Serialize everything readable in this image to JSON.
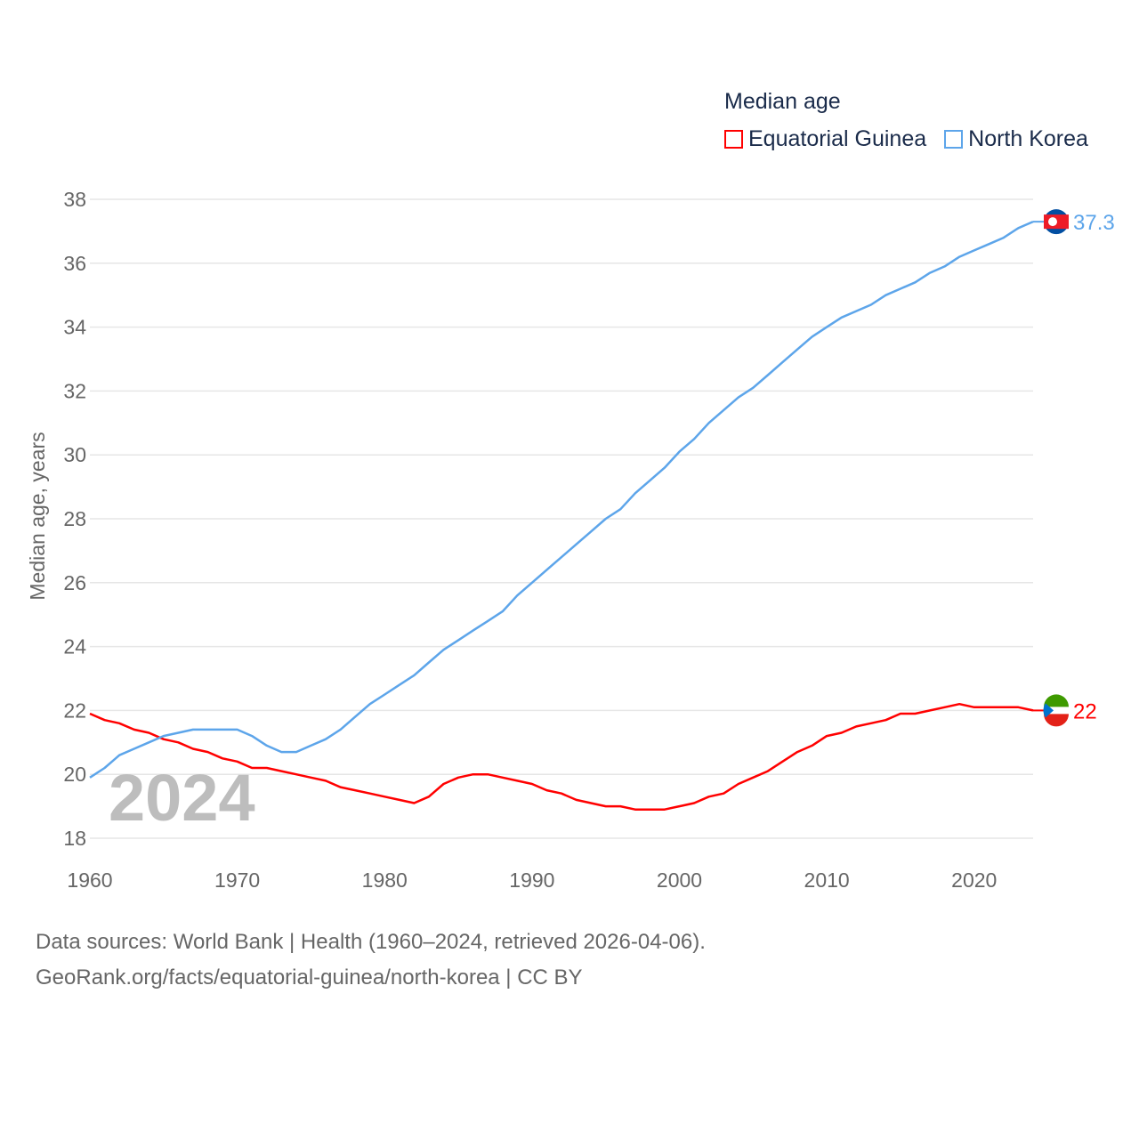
{
  "chart_data": {
    "type": "line",
    "title": "Median age",
    "ylabel": "Median age, years",
    "xlabel": "",
    "xlim": [
      1960,
      2024
    ],
    "ylim": [
      18,
      38
    ],
    "yticks": [
      18,
      20,
      22,
      24,
      26,
      28,
      30,
      32,
      34,
      36,
      38
    ],
    "xticks": [
      1960,
      1970,
      1980,
      1990,
      2000,
      2010,
      2020
    ],
    "grid": true,
    "legend_position": "top-right",
    "year_watermark": "2024",
    "x": [
      1960,
      1961,
      1962,
      1963,
      1964,
      1965,
      1966,
      1967,
      1968,
      1969,
      1970,
      1971,
      1972,
      1973,
      1974,
      1975,
      1976,
      1977,
      1978,
      1979,
      1980,
      1981,
      1982,
      1983,
      1984,
      1985,
      1986,
      1987,
      1988,
      1989,
      1990,
      1991,
      1992,
      1993,
      1994,
      1995,
      1996,
      1997,
      1998,
      1999,
      2000,
      2001,
      2002,
      2003,
      2004,
      2005,
      2006,
      2007,
      2008,
      2009,
      2010,
      2011,
      2012,
      2013,
      2014,
      2015,
      2016,
      2017,
      2018,
      2019,
      2020,
      2021,
      2022,
      2023,
      2024
    ],
    "series": [
      {
        "name": "Equatorial Guinea",
        "color": "#ff0000",
        "end_label": "22",
        "values": [
          21.9,
          21.7,
          21.6,
          21.4,
          21.3,
          21.1,
          21.0,
          20.8,
          20.7,
          20.5,
          20.4,
          20.2,
          20.2,
          20.1,
          20.0,
          19.9,
          19.8,
          19.6,
          19.5,
          19.4,
          19.3,
          19.2,
          19.1,
          19.3,
          19.7,
          19.9,
          20.0,
          20.0,
          19.9,
          19.8,
          19.7,
          19.5,
          19.4,
          19.2,
          19.1,
          19.0,
          19.0,
          18.9,
          18.9,
          18.9,
          19.0,
          19.1,
          19.3,
          19.4,
          19.7,
          19.9,
          20.1,
          20.4,
          20.7,
          20.9,
          21.2,
          21.3,
          21.5,
          21.6,
          21.7,
          21.9,
          21.9,
          22.0,
          22.1,
          22.2,
          22.1,
          22.1,
          22.1,
          22.1,
          22.0
        ]
      },
      {
        "name": "North Korea",
        "color": "#5da5ea",
        "end_label": "37.3",
        "values": [
          19.9,
          20.2,
          20.6,
          20.8,
          21.0,
          21.2,
          21.3,
          21.4,
          21.4,
          21.4,
          21.4,
          21.2,
          20.9,
          20.7,
          20.7,
          20.9,
          21.1,
          21.4,
          21.8,
          22.2,
          22.5,
          22.8,
          23.1,
          23.5,
          23.9,
          24.2,
          24.5,
          24.8,
          25.1,
          25.6,
          26.0,
          26.4,
          26.8,
          27.2,
          27.6,
          28.0,
          28.3,
          28.8,
          29.2,
          29.6,
          30.1,
          30.5,
          31.0,
          31.4,
          31.8,
          32.1,
          32.5,
          32.9,
          33.3,
          33.7,
          34.0,
          34.3,
          34.5,
          34.7,
          35.0,
          35.2,
          35.4,
          35.7,
          35.9,
          36.2,
          36.4,
          36.6,
          36.8,
          37.1,
          37.3
        ]
      }
    ]
  },
  "footer": {
    "line1": "Data sources: World Bank | Health (1960–2024, retrieved 2026-04-06).",
    "line2": "GeoRank.org/facts/equatorial-guinea/north-korea | CC BY"
  }
}
